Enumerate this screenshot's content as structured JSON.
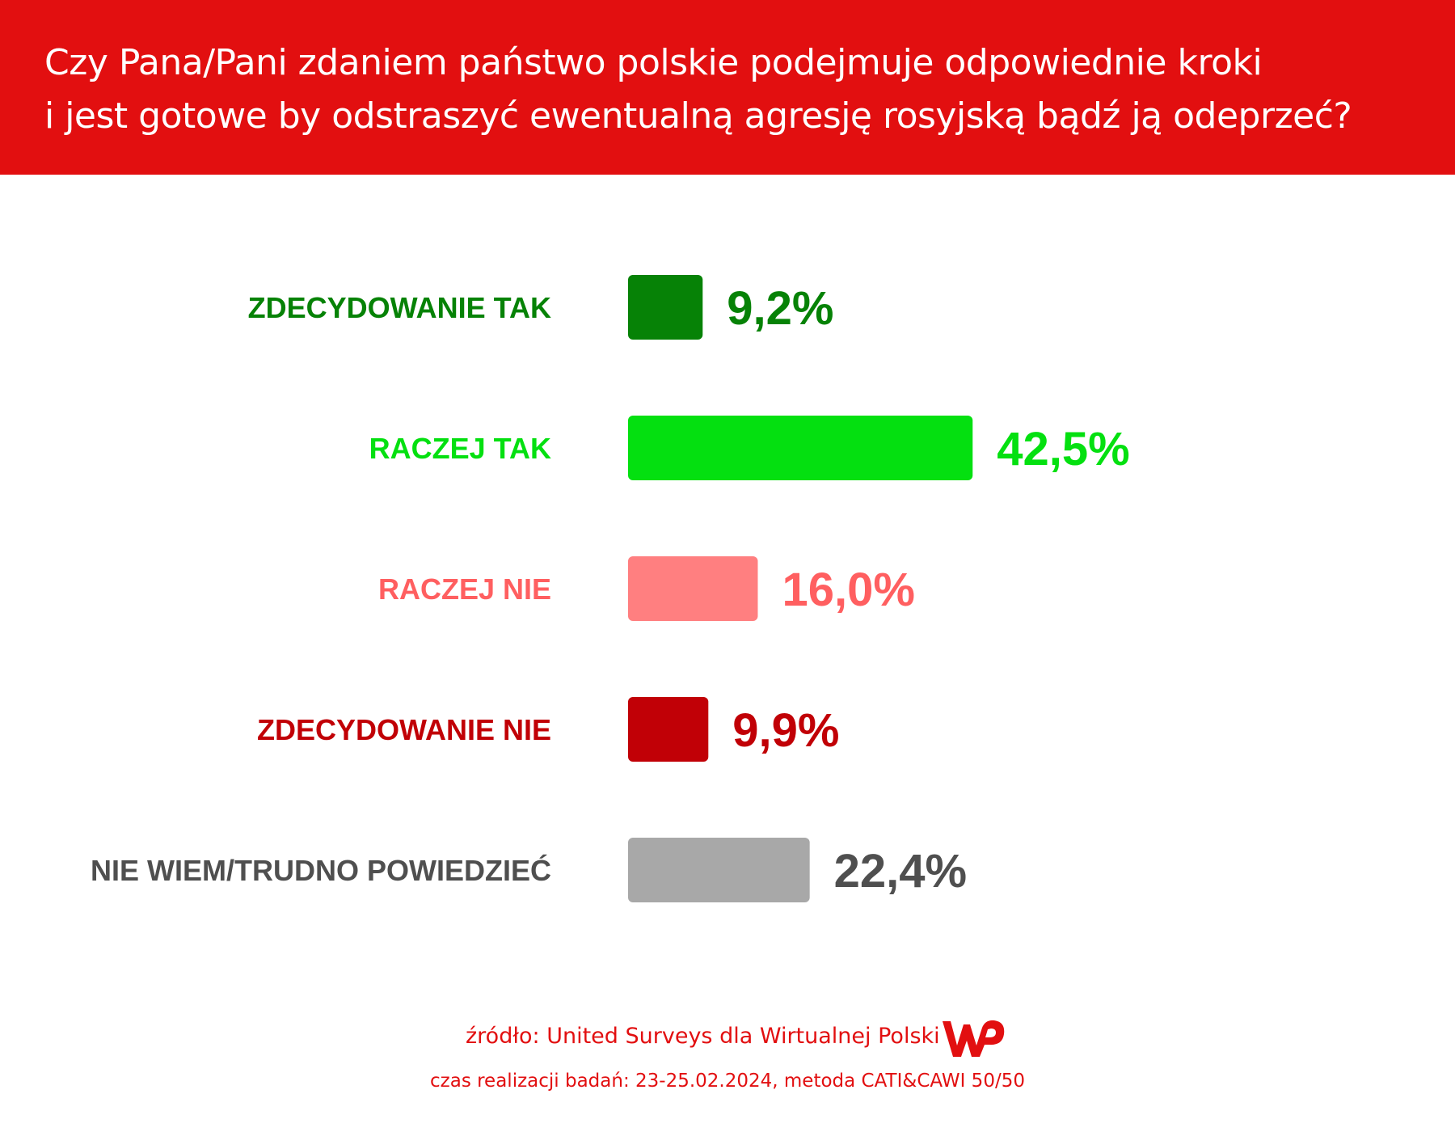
{
  "header": {
    "title_line1": "Czy Pana/Pani zdaniem państwo polskie podejmuje odpowiednie kroki",
    "title_line2": "i jest gotowe by odstraszyć ewentualną agresję rosyjską bądź ją odeprzeć?",
    "background_color": "#e20f10"
  },
  "chart_data": {
    "type": "bar",
    "orientation": "horizontal",
    "categories": [
      "ZDECYDOWANIE TAK",
      "RACZEJ TAK",
      "RACZEJ NIE",
      "ZDECYDOWANIE NIE",
      "NIE WIEM/TRUDNO POWIEDZIEĆ"
    ],
    "values": [
      9.2,
      42.5,
      16.0,
      9.9,
      22.4
    ],
    "value_labels": [
      "9,2%",
      "42,5%",
      "16,0%",
      "9,9%",
      "22,4%"
    ],
    "bar_colors": [
      "#068206",
      "#04e010",
      "#ff7f80",
      "#c10006",
      "#a8a8a8"
    ],
    "label_colors": [
      "#068206",
      "#04e010",
      "#ff5f60",
      "#c10006",
      "#4f4f4f"
    ],
    "grid": false,
    "legend": "none"
  },
  "footer": {
    "source": "źródło: United Surveys dla Wirtualnej Polski",
    "date_method": "czas realizacji badań: 23-25.02.2024, metoda CATI&CAWI 50/50",
    "logo_text": "WP"
  }
}
